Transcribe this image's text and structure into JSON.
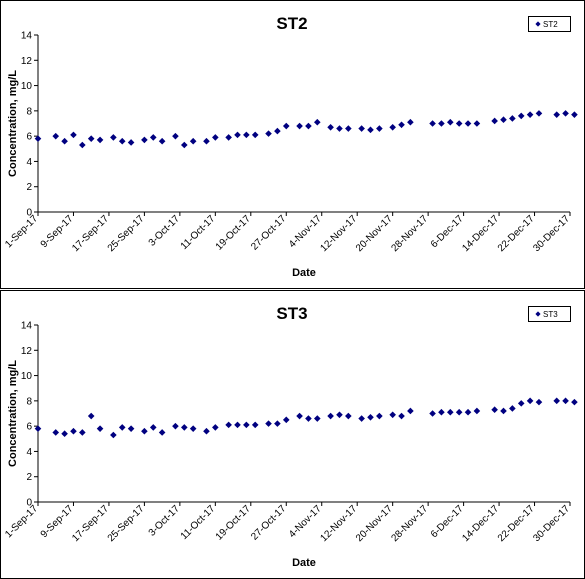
{
  "chart_data": [
    {
      "type": "scatter",
      "title": "ST2",
      "xlabel": "Date",
      "ylabel": "Concentration, mg/L",
      "ylim": [
        0,
        14
      ],
      "yticks": [
        0,
        2,
        4,
        6,
        8,
        10,
        12,
        14
      ],
      "xlim": [
        "1-Sep-17",
        "30-Dec-17"
      ],
      "xticks": [
        "1-Sep-17",
        "9-Sep-17",
        "17-Sep-17",
        "25-Sep-17",
        "3-Oct-17",
        "11-Oct-17",
        "19-Oct-17",
        "27-Oct-17",
        "4-Nov-17",
        "12-Nov-17",
        "20-Nov-17",
        "28-Nov-17",
        "6-Dec-17",
        "14-Dec-17",
        "22-Dec-17",
        "30-Dec-17"
      ],
      "grid": false,
      "legend_position": "top-right",
      "marker": "diamond",
      "series": [
        {
          "name": "ST2",
          "color": "#000080",
          "points": [
            {
              "x": "1-Sep-17",
              "y": 5.8
            },
            {
              "x": "5-Sep-17",
              "y": 6.0
            },
            {
              "x": "7-Sep-17",
              "y": 5.6
            },
            {
              "x": "9-Sep-17",
              "y": 6.1
            },
            {
              "x": "11-Sep-17",
              "y": 5.3
            },
            {
              "x": "13-Sep-17",
              "y": 5.8
            },
            {
              "x": "15-Sep-17",
              "y": 5.7
            },
            {
              "x": "18-Sep-17",
              "y": 5.9
            },
            {
              "x": "20-Sep-17",
              "y": 5.6
            },
            {
              "x": "22-Sep-17",
              "y": 5.5
            },
            {
              "x": "25-Sep-17",
              "y": 5.7
            },
            {
              "x": "27-Sep-17",
              "y": 5.9
            },
            {
              "x": "29-Sep-17",
              "y": 5.6
            },
            {
              "x": "2-Oct-17",
              "y": 6.0
            },
            {
              "x": "4-Oct-17",
              "y": 5.3
            },
            {
              "x": "6-Oct-17",
              "y": 5.6
            },
            {
              "x": "9-Oct-17",
              "y": 5.6
            },
            {
              "x": "11-Oct-17",
              "y": 5.9
            },
            {
              "x": "14-Oct-17",
              "y": 5.9
            },
            {
              "x": "16-Oct-17",
              "y": 6.1
            },
            {
              "x": "18-Oct-17",
              "y": 6.1
            },
            {
              "x": "20-Oct-17",
              "y": 6.1
            },
            {
              "x": "23-Oct-17",
              "y": 6.2
            },
            {
              "x": "25-Oct-17",
              "y": 6.4
            },
            {
              "x": "27-Oct-17",
              "y": 6.8
            },
            {
              "x": "30-Oct-17",
              "y": 6.8
            },
            {
              "x": "1-Nov-17",
              "y": 6.8
            },
            {
              "x": "3-Nov-17",
              "y": 7.1
            },
            {
              "x": "6-Nov-17",
              "y": 6.7
            },
            {
              "x": "8-Nov-17",
              "y": 6.6
            },
            {
              "x": "10-Nov-17",
              "y": 6.6
            },
            {
              "x": "13-Nov-17",
              "y": 6.6
            },
            {
              "x": "15-Nov-17",
              "y": 6.5
            },
            {
              "x": "17-Nov-17",
              "y": 6.6
            },
            {
              "x": "20-Nov-17",
              "y": 6.7
            },
            {
              "x": "22-Nov-17",
              "y": 6.9
            },
            {
              "x": "24-Nov-17",
              "y": 7.1
            },
            {
              "x": "29-Nov-17",
              "y": 7.0
            },
            {
              "x": "1-Dec-17",
              "y": 7.0
            },
            {
              "x": "3-Dec-17",
              "y": 7.1
            },
            {
              "x": "5-Dec-17",
              "y": 7.0
            },
            {
              "x": "7-Dec-17",
              "y": 7.0
            },
            {
              "x": "9-Dec-17",
              "y": 7.0
            },
            {
              "x": "13-Dec-17",
              "y": 7.2
            },
            {
              "x": "15-Dec-17",
              "y": 7.3
            },
            {
              "x": "17-Dec-17",
              "y": 7.4
            },
            {
              "x": "19-Dec-17",
              "y": 7.6
            },
            {
              "x": "21-Dec-17",
              "y": 7.7
            },
            {
              "x": "23-Dec-17",
              "y": 7.8
            },
            {
              "x": "27-Dec-17",
              "y": 7.7
            },
            {
              "x": "29-Dec-17",
              "y": 7.8
            },
            {
              "x": "31-Dec-17",
              "y": 7.7
            }
          ]
        }
      ]
    },
    {
      "type": "scatter",
      "title": "ST3",
      "xlabel": "Date",
      "ylabel": "Concentration, mg/L",
      "ylim": [
        0,
        14
      ],
      "yticks": [
        0,
        2,
        4,
        6,
        8,
        10,
        12,
        14
      ],
      "xlim": [
        "1-Sep-17",
        "30-Dec-17"
      ],
      "xticks": [
        "1-Sep-17",
        "9-Sep-17",
        "17-Sep-17",
        "25-Sep-17",
        "3-Oct-17",
        "11-Oct-17",
        "19-Oct-17",
        "27-Oct-17",
        "4-Nov-17",
        "12-Nov-17",
        "20-Nov-17",
        "28-Nov-17",
        "6-Dec-17",
        "14-Dec-17",
        "22-Dec-17",
        "30-Dec-17"
      ],
      "grid": false,
      "legend_position": "top-right",
      "marker": "diamond",
      "series": [
        {
          "name": "ST3",
          "color": "#000080",
          "points": [
            {
              "x": "1-Sep-17",
              "y": 5.8
            },
            {
              "x": "5-Sep-17",
              "y": 5.5
            },
            {
              "x": "7-Sep-17",
              "y": 5.4
            },
            {
              "x": "9-Sep-17",
              "y": 5.6
            },
            {
              "x": "11-Sep-17",
              "y": 5.5
            },
            {
              "x": "13-Sep-17",
              "y": 6.8
            },
            {
              "x": "15-Sep-17",
              "y": 5.8
            },
            {
              "x": "18-Sep-17",
              "y": 5.3
            },
            {
              "x": "20-Sep-17",
              "y": 5.9
            },
            {
              "x": "22-Sep-17",
              "y": 5.8
            },
            {
              "x": "25-Sep-17",
              "y": 5.6
            },
            {
              "x": "27-Sep-17",
              "y": 5.9
            },
            {
              "x": "29-Sep-17",
              "y": 5.5
            },
            {
              "x": "2-Oct-17",
              "y": 6.0
            },
            {
              "x": "4-Oct-17",
              "y": 5.9
            },
            {
              "x": "6-Oct-17",
              "y": 5.8
            },
            {
              "x": "9-Oct-17",
              "y": 5.6
            },
            {
              "x": "11-Oct-17",
              "y": 5.9
            },
            {
              "x": "14-Oct-17",
              "y": 6.1
            },
            {
              "x": "16-Oct-17",
              "y": 6.1
            },
            {
              "x": "18-Oct-17",
              "y": 6.1
            },
            {
              "x": "20-Oct-17",
              "y": 6.1
            },
            {
              "x": "23-Oct-17",
              "y": 6.2
            },
            {
              "x": "25-Oct-17",
              "y": 6.2
            },
            {
              "x": "27-Oct-17",
              "y": 6.5
            },
            {
              "x": "30-Oct-17",
              "y": 6.8
            },
            {
              "x": "1-Nov-17",
              "y": 6.6
            },
            {
              "x": "3-Nov-17",
              "y": 6.6
            },
            {
              "x": "6-Nov-17",
              "y": 6.8
            },
            {
              "x": "8-Nov-17",
              "y": 6.9
            },
            {
              "x": "10-Nov-17",
              "y": 6.8
            },
            {
              "x": "13-Nov-17",
              "y": 6.6
            },
            {
              "x": "15-Nov-17",
              "y": 6.7
            },
            {
              "x": "17-Nov-17",
              "y": 6.8
            },
            {
              "x": "20-Nov-17",
              "y": 6.9
            },
            {
              "x": "22-Nov-17",
              "y": 6.8
            },
            {
              "x": "24-Nov-17",
              "y": 7.2
            },
            {
              "x": "29-Nov-17",
              "y": 7.0
            },
            {
              "x": "1-Dec-17",
              "y": 7.1
            },
            {
              "x": "3-Dec-17",
              "y": 7.1
            },
            {
              "x": "5-Dec-17",
              "y": 7.1
            },
            {
              "x": "7-Dec-17",
              "y": 7.1
            },
            {
              "x": "9-Dec-17",
              "y": 7.2
            },
            {
              "x": "13-Dec-17",
              "y": 7.3
            },
            {
              "x": "15-Dec-17",
              "y": 7.2
            },
            {
              "x": "17-Dec-17",
              "y": 7.4
            },
            {
              "x": "19-Dec-17",
              "y": 7.8
            },
            {
              "x": "21-Dec-17",
              "y": 8.0
            },
            {
              "x": "23-Dec-17",
              "y": 7.9
            },
            {
              "x": "27-Dec-17",
              "y": 8.0
            },
            {
              "x": "29-Dec-17",
              "y": 8.0
            },
            {
              "x": "31-Dec-17",
              "y": 7.9
            }
          ]
        }
      ]
    }
  ]
}
